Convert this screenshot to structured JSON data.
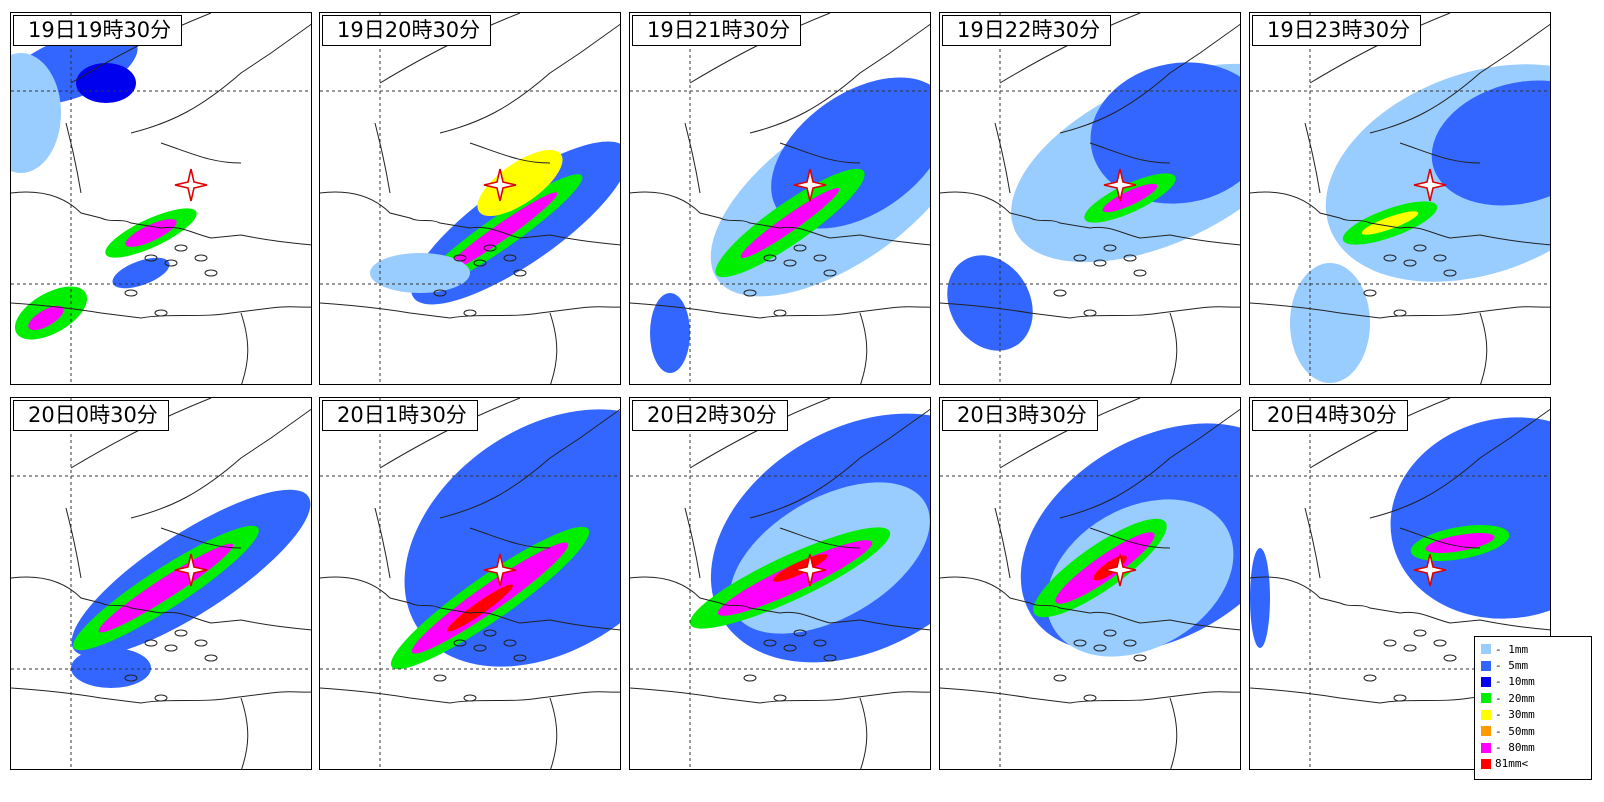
{
  "panels": [
    {
      "label": "19日19時30分"
    },
    {
      "label": "19日20時30分"
    },
    {
      "label": "19日21時30分"
    },
    {
      "label": "19日22時30分"
    },
    {
      "label": "19日23時30分"
    },
    {
      "label": "20日0時30分"
    },
    {
      "label": "20日1時30分"
    },
    {
      "label": "20日2時30分"
    },
    {
      "label": "20日3時30分"
    },
    {
      "label": "20日4時30分"
    }
  ],
  "legend": [
    {
      "label": "- 1mm",
      "color": "#99ccff"
    },
    {
      "label": "- 5mm",
      "color": "#3366ff"
    },
    {
      "label": "- 10mm",
      "color": "#0000ee"
    },
    {
      "label": "- 20mm",
      "color": "#00ee00"
    },
    {
      "label": "- 30mm",
      "color": "#ffff00"
    },
    {
      "label": "- 50mm",
      "color": "#ff9900"
    },
    {
      "label": "- 80mm",
      "color": "#ff00ff"
    },
    {
      "label": "81mm<",
      "color": "#ff0000"
    }
  ],
  "marker_icon": "four-point-star-icon"
}
